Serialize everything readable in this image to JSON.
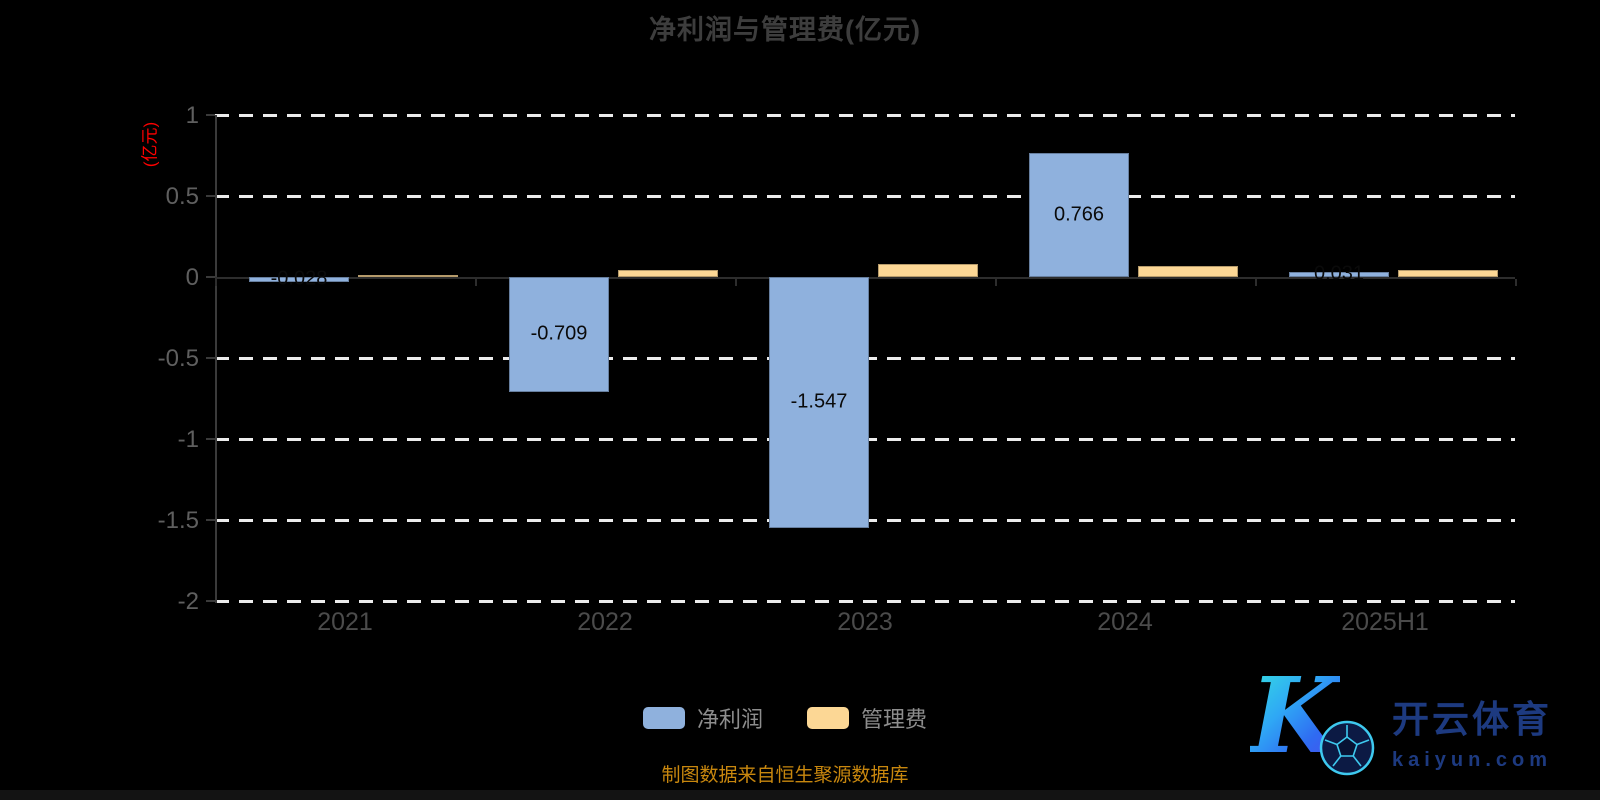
{
  "title": "净利润与管理费(亿元)",
  "y_axis": {
    "name": "(亿元)",
    "name_color": "#ff0000",
    "tick_labels": [
      "1",
      "0.5",
      "0",
      "-0.5",
      "-1",
      "-1.5",
      "-2"
    ]
  },
  "x_axis": {
    "categories": [
      "2021",
      "2022",
      "2023",
      "2024",
      "2025H1"
    ]
  },
  "legend": {
    "items": [
      {
        "label": "净利润",
        "color": "#8fb1dd"
      },
      {
        "label": "管理费",
        "color": "#fcd795"
      }
    ]
  },
  "footer": {
    "source_note": "制图数据来自恒生聚源数据库"
  },
  "watermark": {
    "brand_letter": "K",
    "brand_cn": "开云体育",
    "brand_domain": "kaiyun.com"
  },
  "chart_data": {
    "type": "bar",
    "title": "净利润与管理费(亿元)",
    "ylabel": "(亿元)",
    "ylim": [
      -2,
      1
    ],
    "grid": "dashed-horizontal-white",
    "legend_position": "bottom",
    "categories": [
      "2021",
      "2022",
      "2023",
      "2024",
      "2025H1"
    ],
    "y_ticks": [
      {
        "label": "1",
        "value": 1
      },
      {
        "label": "0.5",
        "value": 0.5
      },
      {
        "label": "0",
        "value": 0
      },
      {
        "label": "-0.5",
        "value": -0.5
      },
      {
        "label": "-1",
        "value": -1
      },
      {
        "label": "-1.5",
        "value": -1.5
      },
      {
        "label": "-2",
        "value": -2
      }
    ],
    "series": [
      {
        "name": "净利润",
        "id": "net-profit",
        "color": "#8fb1dd",
        "values": [
          -0.028,
          -0.709,
          -1.547,
          0.766,
          0.031
        ],
        "labels": [
          "-0.028",
          "-0.709",
          "-1.547",
          "0.766",
          "0.031"
        ],
        "labels_shown": true
      },
      {
        "name": "管理费",
        "id": "mgmt-fee",
        "color": "#fcd795",
        "values": [
          0.015,
          0.045,
          0.08,
          0.07,
          0.045
        ],
        "labels_shown": false
      }
    ]
  }
}
